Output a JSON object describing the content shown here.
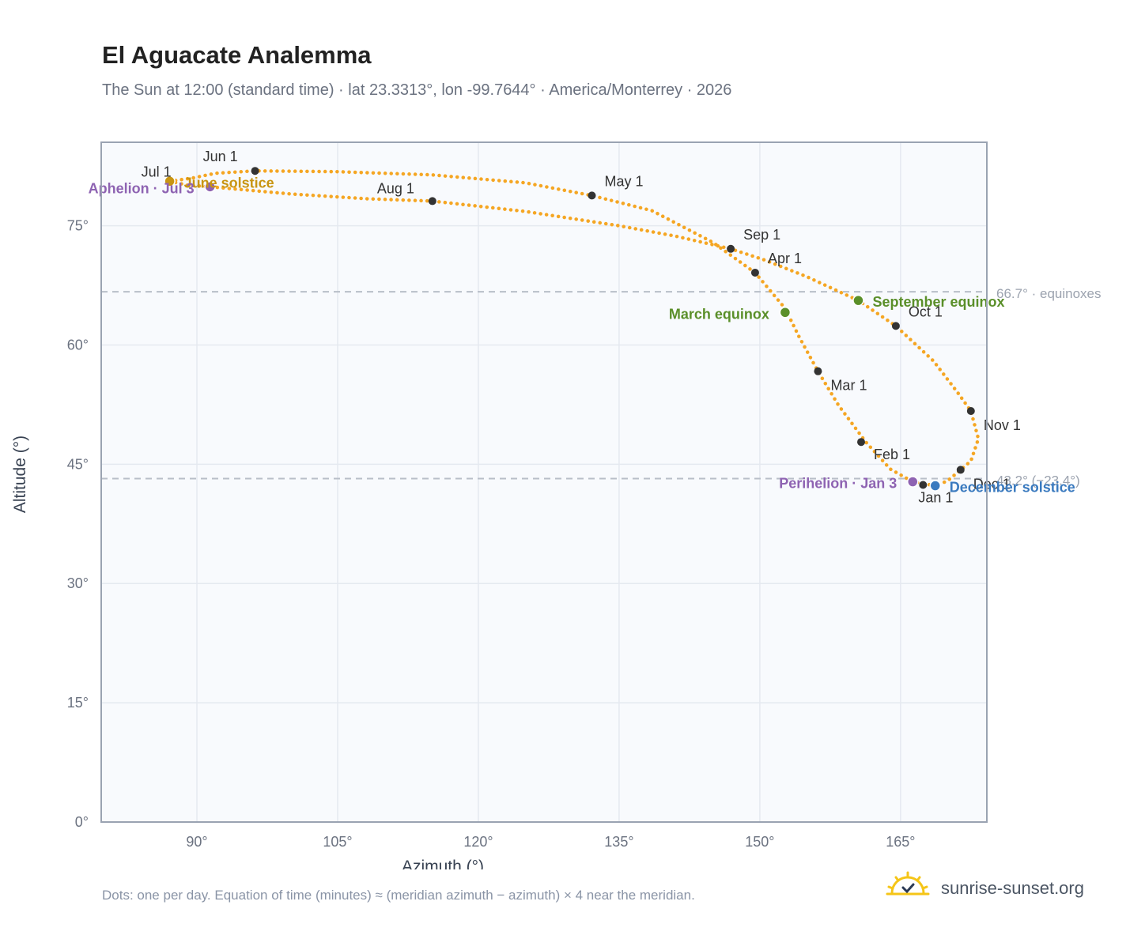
{
  "title": "El Aguacate Analemma",
  "subtitle": "The Sun at 12:00 (standard time) · lat 23.3313°, lon -99.7644° · America/Monterrey · 2026",
  "footnote": "Dots: one per day. Equation of time (minutes) ≈ (meridian azimuth − azimuth) × 4 near the meridian.",
  "brand": {
    "name": "sunrise-sunset.org",
    "icon": "sun-logo-icon"
  },
  "colors": {
    "path": "#f5a623",
    "month_marker": "#333333",
    "equinox": "#5a8f29",
    "june_solstice": "#c89512",
    "december_solstice": "#3a7abf",
    "apsis": "#8e63b2",
    "reference_line": "#b8bec8",
    "plot_bg": "#f8fafd",
    "plot_border": "#9aa3b2",
    "grid": "#e5e9f0"
  },
  "chart_data": {
    "type": "scatter",
    "title": "El Aguacate Analemma",
    "xlabel": "Azimuth (°)",
    "ylabel": "Altitude (°)",
    "xlim": [
      79.8,
      174.2
    ],
    "ylim": [
      0,
      85.5
    ],
    "xticks": [
      90,
      105,
      120,
      135,
      150,
      165
    ],
    "xtick_labels": [
      "90°",
      "105°",
      "120°",
      "135°",
      "150°",
      "165°"
    ],
    "yticks": [
      0,
      15,
      30,
      45,
      60,
      75
    ],
    "ytick_labels": [
      "0°",
      "15°",
      "30°",
      "45°",
      "60°",
      "75°"
    ],
    "grid": true,
    "path_points": [
      {
        "az": 168.7,
        "alt": 42.3
      },
      {
        "az": 166.3,
        "alt": 42.8
      },
      {
        "az": 163.9,
        "alt": 44.4
      },
      {
        "az": 161.3,
        "alt": 47.8
      },
      {
        "az": 158.4,
        "alt": 52.4
      },
      {
        "az": 156.2,
        "alt": 56.7
      },
      {
        "az": 154.2,
        "alt": 61.0
      },
      {
        "az": 152.7,
        "alt": 64.6
      },
      {
        "az": 151.0,
        "alt": 67.0
      },
      {
        "az": 149.5,
        "alt": 69.1
      },
      {
        "az": 145.0,
        "alt": 72.9
      },
      {
        "az": 138.5,
        "alt": 76.9
      },
      {
        "az": 132.1,
        "alt": 78.8
      },
      {
        "az": 125.0,
        "alt": 80.4
      },
      {
        "az": 115.0,
        "alt": 81.4
      },
      {
        "az": 105.0,
        "alt": 81.8
      },
      {
        "az": 96.2,
        "alt": 81.9
      },
      {
        "az": 92.0,
        "alt": 81.6
      },
      {
        "az": 89.5,
        "alt": 81.0
      },
      {
        "az": 87.1,
        "alt": 80.6
      },
      {
        "az": 89.0,
        "alt": 80.1
      },
      {
        "az": 91.4,
        "alt": 79.9
      },
      {
        "az": 100.0,
        "alt": 79.0
      },
      {
        "az": 108.0,
        "alt": 78.4
      },
      {
        "az": 115.1,
        "alt": 78.1
      },
      {
        "az": 125.0,
        "alt": 76.8
      },
      {
        "az": 135.0,
        "alt": 75.0
      },
      {
        "az": 141.0,
        "alt": 73.7
      },
      {
        "az": 146.9,
        "alt": 72.1
      },
      {
        "az": 150.5,
        "alt": 70.7
      },
      {
        "az": 155.0,
        "alt": 68.6
      },
      {
        "az": 160.5,
        "alt": 65.6
      },
      {
        "az": 164.5,
        "alt": 62.4
      },
      {
        "az": 168.5,
        "alt": 58.0
      },
      {
        "az": 171.1,
        "alt": 54.0
      },
      {
        "az": 172.5,
        "alt": 51.7
      },
      {
        "az": 173.3,
        "alt": 48.2
      },
      {
        "az": 172.5,
        "alt": 45.4
      },
      {
        "az": 171.4,
        "alt": 44.3
      },
      {
        "az": 170.0,
        "alt": 42.9
      },
      {
        "az": 168.7,
        "alt": 42.3
      }
    ],
    "month_markers": [
      {
        "label": "Jan 1",
        "az": 167.4,
        "alt": 42.4
      },
      {
        "label": "Feb 1",
        "az": 160.8,
        "alt": 47.8
      },
      {
        "label": "Mar 1",
        "az": 156.2,
        "alt": 56.7
      },
      {
        "label": "Apr 1",
        "az": 149.5,
        "alt": 69.1
      },
      {
        "label": "May 1",
        "az": 132.1,
        "alt": 78.8
      },
      {
        "label": "Jun 1",
        "az": 96.2,
        "alt": 81.9
      },
      {
        "label": "Jul 1",
        "az": 87.1,
        "alt": 80.6
      },
      {
        "label": "Aug 1",
        "az": 115.1,
        "alt": 78.1
      },
      {
        "label": "Sep 1",
        "az": 146.9,
        "alt": 72.1
      },
      {
        "label": "Oct 1",
        "az": 164.5,
        "alt": 62.4
      },
      {
        "label": "Nov 1",
        "az": 172.5,
        "alt": 51.7
      },
      {
        "label": "Dec 1",
        "az": 171.4,
        "alt": 44.3
      }
    ],
    "events": [
      {
        "label": "March equinox",
        "az": 152.7,
        "alt": 64.1,
        "color": "#5a8f29",
        "anchor": "end"
      },
      {
        "label": "September equinox",
        "az": 160.5,
        "alt": 65.6,
        "color": "#5a8f29",
        "anchor": "start"
      },
      {
        "label": "June solstice",
        "az": 87.1,
        "alt": 80.6,
        "color": "#c89512",
        "anchor": "start"
      },
      {
        "label": "December solstice",
        "az": 168.7,
        "alt": 42.3,
        "color": "#3a7abf",
        "anchor": "start"
      },
      {
        "label": "Perihelion · Jan 3",
        "az": 166.3,
        "alt": 42.8,
        "color": "#8e63b2",
        "anchor": "end"
      },
      {
        "label": "Aphelion · Jul 3",
        "az": 91.4,
        "alt": 79.9,
        "color": "#8e63b2",
        "anchor": "end"
      }
    ],
    "reference_lines": [
      {
        "alt": 66.7,
        "label": "66.7° · equinoxes"
      },
      {
        "alt": 43.2,
        "label": "43.2° (−23.4°)"
      }
    ]
  }
}
